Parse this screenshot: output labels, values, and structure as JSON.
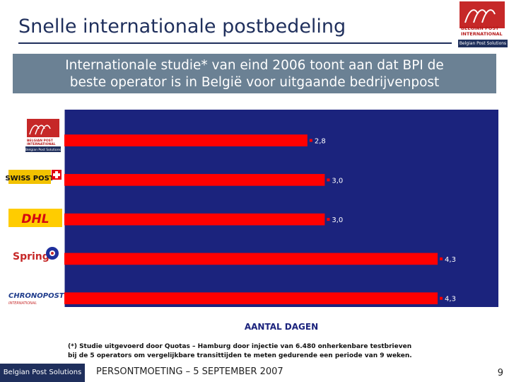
{
  "slide": {
    "title": "Snelle internationale postbedeling",
    "subtitle_line1": "Internationale studie* van eind 2006 toont aan dat BPI de",
    "subtitle_line2": "beste operator is in België voor uitgaande bedrijvenpost",
    "footnote_line1": "(*) Studie uitgevoerd door Quotas – Hamburg door injectie van 6.480 onherkenbare testbrieven",
    "footnote_line2": "bij de 5 operators om vergelijkbare transittijden te meten gedurende een periode van 9 weken.",
    "footer_text": "PERSONTMOETING – 5 SEPTEMBER 2007",
    "page_number": "9"
  },
  "logos": {
    "top_brand_line1": "BELGIAN POST",
    "top_brand_line2": "INTERNATIONAL",
    "top_solutions": "Belgian Post Solutions",
    "footer_logo_text": "Belgian Post Solutions",
    "bpi_logo_line1": "BELGIAN POST",
    "bpi_logo_line2": "INTERNATIONAL",
    "bpi_logo_sub": "Belgian Post Solutions",
    "swiss_post": "SWISS POST",
    "dhl": "DHL",
    "spring": "Spring",
    "chronopost": "CHRONOPOST",
    "chronopost_sub": "INTERNATIONAL"
  },
  "colors": {
    "plot_background": "#1b237d",
    "bar": "#ff0000",
    "title": "#1f2f5c",
    "subtitle_band": "#6b8194"
  },
  "chart_data": {
    "type": "bar",
    "orientation": "horizontal",
    "categories": [
      "Belgian Post International",
      "Swiss Post",
      "DHL",
      "Spring",
      "Chronopost"
    ],
    "values": [
      2.8,
      3.0,
      3.0,
      4.3,
      4.3
    ],
    "value_labels": [
      "2,8",
      "3,0",
      "3,0",
      "4,3",
      "4,3"
    ],
    "xlabel": "AANTAL DAGEN",
    "xlim": [
      0,
      5
    ],
    "x_ticks": [
      "0,0",
      "0,5",
      "1,0",
      "1,5",
      "2,0",
      "2,5",
      "3,0",
      "3,5",
      "4,0",
      "4,5",
      "5,0"
    ],
    "grid": false,
    "legend": "none"
  }
}
